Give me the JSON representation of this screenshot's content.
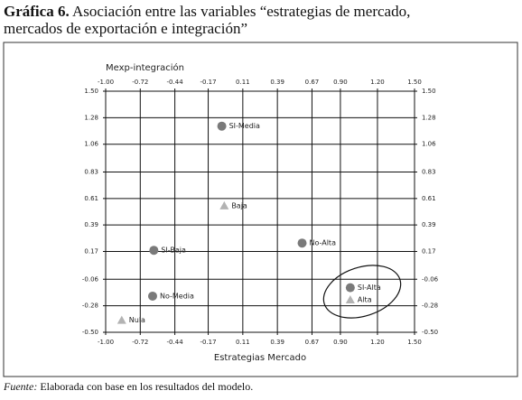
{
  "chart_data": {
    "type": "scatter",
    "title_label": "Gráfica 6.",
    "title": "Asociación entre las variables “estrategias de mercado, mercados de exportación e integración”",
    "x_label": "Estrategias Mercado",
    "y_label": "Mexp-integración",
    "source_label": "Fuente:",
    "source": "Elaborada con base en los resultados del modelo.",
    "xlim": [
      -1.0,
      1.5
    ],
    "ylim": [
      -0.5,
      1.5
    ],
    "grid": true,
    "xticks": [
      {
        "value": -1.0,
        "label": "-1.00"
      },
      {
        "value": -0.72,
        "label": "-0.72"
      },
      {
        "value": -0.44,
        "label": "-0.44"
      },
      {
        "value": -0.17,
        "label": "-0.17"
      },
      0.11,
      0.39,
      0.67,
      {
        "value": 0.9,
        "label": "0.90"
      },
      {
        "value": 1.2,
        "label": "1.20"
      },
      {
        "value": 1.5,
        "label": "1.50"
      }
    ],
    "yticks": [
      {
        "value": -0.5,
        "label": "-0.50"
      },
      -0.28,
      -0.06,
      0.17,
      0.39,
      0.61,
      0.83,
      1.06,
      1.28,
      {
        "value": 1.5,
        "label": "1.50"
      }
    ],
    "series": [
      {
        "marker": "circle",
        "color": "#7a7a7a",
        "labels": [
          "SI-Media",
          "SI-Baja",
          "No-Alta",
          "No-Media",
          "SI-Alta"
        ],
        "x": [
          -0.06,
          -0.61,
          0.59,
          -0.62,
          0.98
        ],
        "values": [
          1.21,
          0.18,
          0.24,
          -0.2,
          -0.13
        ]
      },
      {
        "marker": "triangle",
        "color": "#b3b3b3",
        "labels": [
          "Baja",
          "Nula",
          "Alta"
        ],
        "x": [
          -0.04,
          -0.87,
          0.98
        ],
        "values": [
          0.55,
          -0.4,
          -0.23
        ]
      }
    ]
  }
}
